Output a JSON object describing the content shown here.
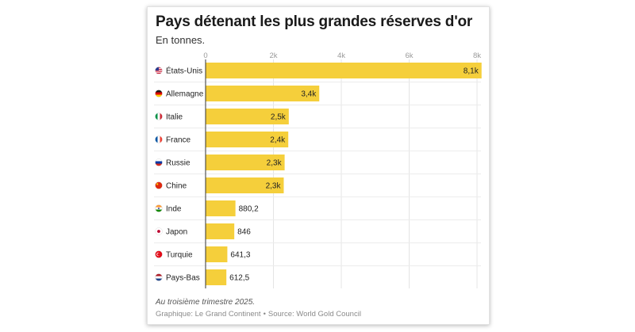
{
  "chart_data": {
    "type": "bar",
    "orientation": "horizontal",
    "title": "Pays détenant les plus grandes réserves d'or",
    "subtitle": "En tonnes.",
    "categories": [
      "États-Unis",
      "Allemagne",
      "Italie",
      "France",
      "Russie",
      "Chine",
      "Inde",
      "Japon",
      "Turquie",
      "Pays-Bas"
    ],
    "values": [
      8133.5,
      3350.3,
      2451.8,
      2437.0,
      2329.6,
      2303.5,
      880.2,
      846.0,
      641.3,
      612.5
    ],
    "labels": [
      "8,1k",
      "3,4k",
      "2,5k",
      "2,4k",
      "2,3k",
      "2,3k",
      "880,2",
      "846",
      "641,3",
      "612,5"
    ],
    "flags": [
      "flag-us-icon",
      "flag-de-icon",
      "flag-it-icon",
      "flag-fr-icon",
      "flag-ru-icon",
      "flag-cn-icon",
      "flag-in-icon",
      "flag-jp-icon",
      "flag-tr-icon",
      "flag-nl-icon"
    ],
    "xlim": [
      0,
      8000
    ],
    "xticks": [
      0,
      2000,
      4000,
      6000,
      8000
    ],
    "xtick_labels": [
      "0",
      "2k",
      "4k",
      "6k",
      "8k"
    ],
    "grid": true,
    "bar_color": "#f5cf3b",
    "xlabel": "",
    "ylabel": ""
  },
  "footer": {
    "note": "Au troisième trimestre 2025.",
    "credit": "Graphique: Le Grand Continent",
    "separator": "•",
    "source": "Source: World Gold Council"
  }
}
